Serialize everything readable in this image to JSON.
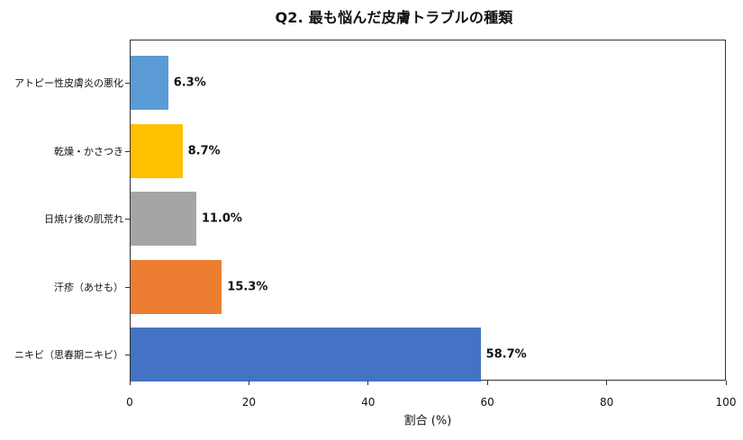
{
  "chart_data": {
    "type": "bar",
    "orientation": "horizontal",
    "title": "Q2. 最も悩んだ皮膚トラブルの種類",
    "xlabel": "割合 (%)",
    "ylabel": "",
    "xlim": [
      0,
      100
    ],
    "xticks": [
      0,
      20,
      40,
      60,
      80,
      100
    ],
    "grid": false,
    "legend": null,
    "categories": [
      "アトピー性皮膚炎の悪化",
      "乾燥・かさつき",
      "日焼け後の肌荒れ",
      "汗疹（あせも）",
      "ニキビ（思春期ニキビ）"
    ],
    "values": [
      6.3,
      8.7,
      11.0,
      15.3,
      58.7
    ],
    "value_labels": [
      "6.3%",
      "8.7%",
      "11.0%",
      "15.3%",
      "58.7%"
    ],
    "colors": [
      "#5b9bd5",
      "#ffc000",
      "#a5a5a5",
      "#ed7d31",
      "#4472c4"
    ]
  },
  "title": "Q2. 最も悩んだ皮膚トラブルの種類",
  "axis": {
    "xlabel": "割合 (%)",
    "xticks": [
      "0",
      "20",
      "40",
      "60",
      "80",
      "100"
    ]
  },
  "bars": [
    {
      "label": "アトピー性皮膚炎の悪化",
      "value": 6.3,
      "value_label": "6.3%",
      "color": "#5b9bd5"
    },
    {
      "label": "乾燥・かさつき",
      "value": 8.7,
      "value_label": "8.7%",
      "color": "#ffc000"
    },
    {
      "label": "日焼け後の肌荒れ",
      "value": 11.0,
      "value_label": "11.0%",
      "color": "#a5a5a5"
    },
    {
      "label": "汗疹（あせも）",
      "value": 15.3,
      "value_label": "15.3%",
      "color": "#ed7d31"
    },
    {
      "label": "ニキビ（思春期ニキビ）",
      "value": 58.7,
      "value_label": "58.7%",
      "color": "#4472c4"
    }
  ]
}
